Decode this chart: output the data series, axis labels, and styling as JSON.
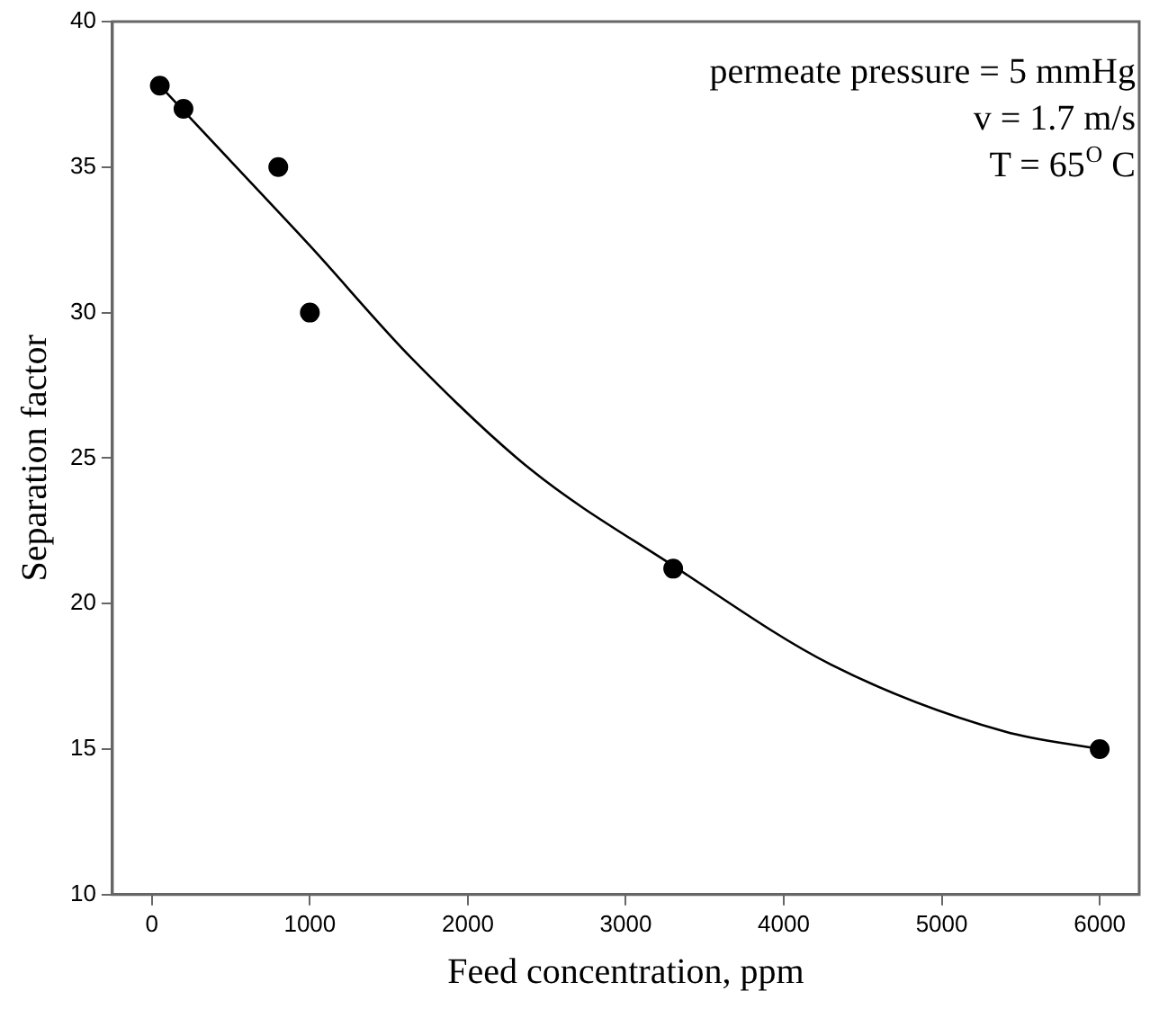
{
  "chart_data": {
    "type": "scatter",
    "xlabel": "Feed concentration, ppm",
    "ylabel": "Separation factor",
    "xlim": [
      -250,
      6250
    ],
    "xticks": [
      0,
      1000,
      2000,
      3000,
      4000,
      5000,
      6000
    ],
    "ylim": [
      10,
      40
    ],
    "yticks": [
      10,
      15,
      20,
      25,
      30,
      35,
      40
    ],
    "grid": false,
    "legend": false,
    "marker": "circle",
    "series": [
      {
        "color": "#000000",
        "x": [
          50,
          200,
          800,
          1000,
          3300,
          6000
        ],
        "values": [
          37.8,
          37,
          35,
          30,
          21.2,
          15
        ]
      },
      {
        "type": "line",
        "color": "#000000",
        "line_style": "solid",
        "marker": "none",
        "x": [
          50,
          500,
          1000,
          1650,
          2400,
          3300,
          4300,
          5400,
          6000
        ],
        "values": [
          37.8,
          35.2,
          32.3,
          28.4,
          24.6,
          21.3,
          17.9,
          15.6,
          15
        ]
      }
    ],
    "annotations": [
      "permeate pressure = 5 mmHg",
      "v = 1.7 m/s",
      "T = 65$^{O}$ C"
    ]
  }
}
